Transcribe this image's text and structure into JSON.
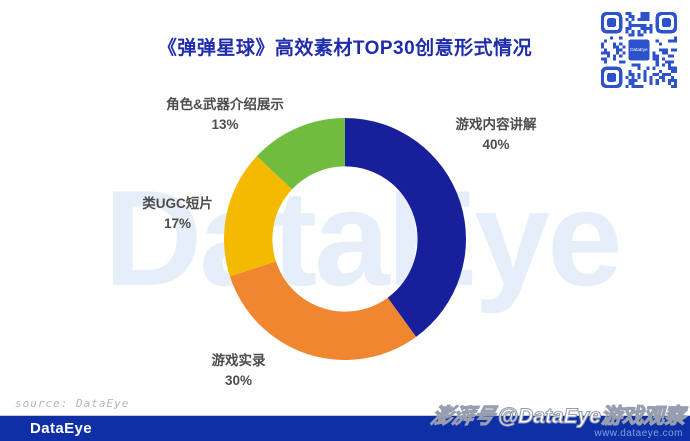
{
  "header": {
    "title": "《弹弹星球》高效素材TOP30创意形式情况"
  },
  "qr": {
    "color": "#2c52cc",
    "center_label": "DataEye"
  },
  "watermark": {
    "text": "DataEye"
  },
  "chart_data": {
    "type": "pie",
    "subtype": "donut",
    "title": "《弹弹星球》高效素材TOP30创意形式情况",
    "start_angle_deg": 0,
    "direction": "clockwise",
    "inner_radius_ratio": 0.6,
    "legend_position": "outside-labels",
    "series": [
      {
        "name": "游戏内容讲解",
        "value": 40,
        "pct_label": "40%",
        "color": "#181f9b"
      },
      {
        "name": "游戏实录",
        "value": 30,
        "pct_label": "30%",
        "color": "#f0862f"
      },
      {
        "name": "类UGC短片",
        "value": 17,
        "pct_label": "17%",
        "color": "#f4ba00"
      },
      {
        "name": "角色&武器介绍展示",
        "value": 13,
        "pct_label": "13%",
        "color": "#6fbc3e"
      }
    ]
  },
  "source": {
    "text": "source: DataEye"
  },
  "footer": {
    "logo": "DataEye",
    "url": "www.dataeye.com",
    "bar_color": "#0e2fa5"
  },
  "stamp": {
    "prefix": "澎湃号",
    "text": "@DataEye游戏观察"
  }
}
